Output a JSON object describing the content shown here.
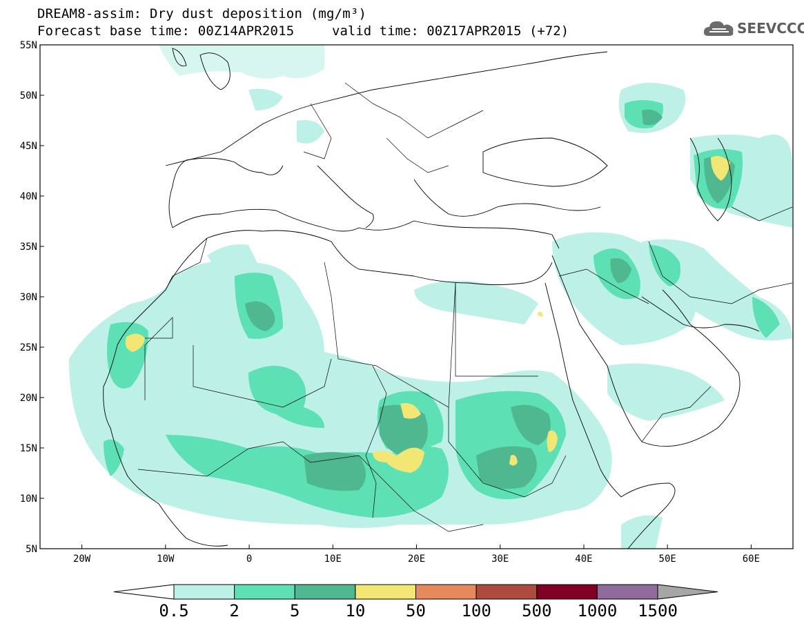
{
  "header": {
    "title_line1": "DREAM8-assim: Dry dust deposition (mg/m³)",
    "title_line2": "Forecast base time: 00Z14APR2015",
    "valid_time": "valid time: 00Z17APR2015 (+72)",
    "logo_text": "SEEVCCC",
    "logo_icon": "cloud-icon"
  },
  "map": {
    "lat_labels": [
      "55N",
      "50N",
      "45N",
      "40N",
      "35N",
      "30N",
      "25N",
      "20N",
      "15N",
      "10N",
      "5N"
    ],
    "lon_labels": [
      "20W",
      "10W",
      "0",
      "10E",
      "20E",
      "30E",
      "40E",
      "50E",
      "60E"
    ],
    "lon_range": [
      -25,
      65
    ],
    "lat_range": [
      5,
      55
    ]
  },
  "colorbar": {
    "labels": [
      "0.5",
      "2",
      "5",
      "10",
      "50",
      "100",
      "500",
      "1000",
      "1500"
    ],
    "colors": [
      "#ffffff",
      "#bdf0e6",
      "#5ce0b4",
      "#4fb890",
      "#f2e675",
      "#e68a5c",
      "#ad4c3e",
      "#800024",
      "#8f6b9c",
      "#a6a6a6"
    ]
  }
}
